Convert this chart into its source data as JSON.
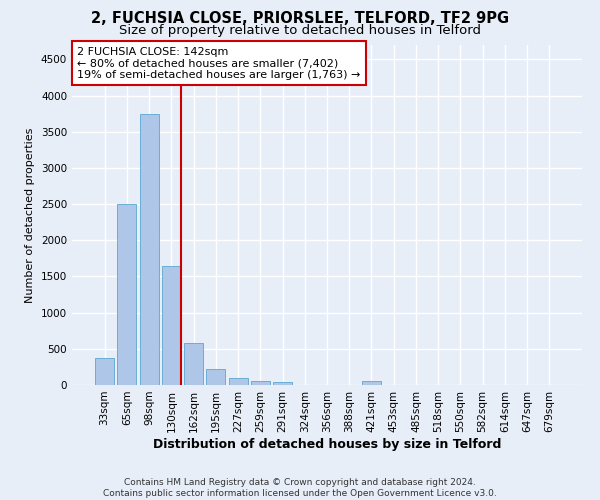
{
  "title": "2, FUCHSIA CLOSE, PRIORSLEE, TELFORD, TF2 9PG",
  "subtitle": "Size of property relative to detached houses in Telford",
  "xlabel": "Distribution of detached houses by size in Telford",
  "ylabel": "Number of detached properties",
  "categories": [
    "33sqm",
    "65sqm",
    "98sqm",
    "130sqm",
    "162sqm",
    "195sqm",
    "227sqm",
    "259sqm",
    "291sqm",
    "324sqm",
    "356sqm",
    "388sqm",
    "421sqm",
    "453sqm",
    "485sqm",
    "518sqm",
    "550sqm",
    "582sqm",
    "614sqm",
    "647sqm",
    "679sqm"
  ],
  "values": [
    370,
    2500,
    3750,
    1640,
    580,
    225,
    100,
    60,
    40,
    0,
    0,
    0,
    60,
    0,
    0,
    0,
    0,
    0,
    0,
    0,
    0
  ],
  "bar_color": "#aec6e8",
  "bar_edgecolor": "#6aaed6",
  "vline_color": "#cc0000",
  "annotation_box_edgecolor": "#cc0000",
  "annotation_text_line1": "2 FUCHSIA CLOSE: 142sqm",
  "annotation_text_line2": "← 80% of detached houses are smaller (7,402)",
  "annotation_text_line3": "19% of semi-detached houses are larger (1,763) →",
  "ylim": [
    0,
    4700
  ],
  "yticks": [
    0,
    500,
    1000,
    1500,
    2000,
    2500,
    3000,
    3500,
    4000,
    4500
  ],
  "footer_line1": "Contains HM Land Registry data © Crown copyright and database right 2024.",
  "footer_line2": "Contains public sector information licensed under the Open Government Licence v3.0.",
  "bg_color": "#e8eef8",
  "plot_bg_color": "#e8eef8",
  "grid_color": "#ffffff",
  "title_fontsize": 10.5,
  "subtitle_fontsize": 9.5,
  "xlabel_fontsize": 9,
  "ylabel_fontsize": 8,
  "tick_fontsize": 7.5,
  "ann_fontsize": 8,
  "footer_fontsize": 6.5
}
